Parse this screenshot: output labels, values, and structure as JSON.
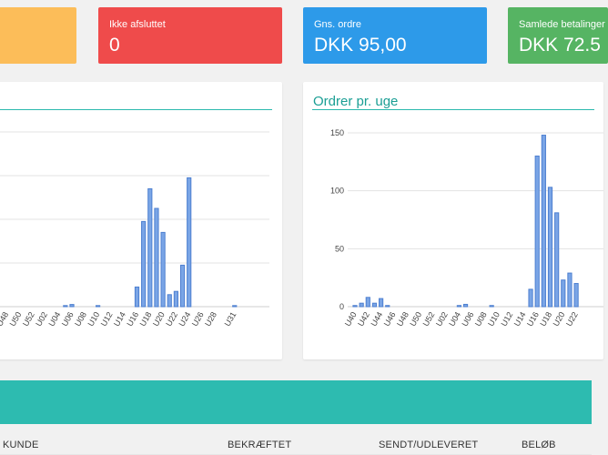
{
  "cards": [
    {
      "label": "",
      "value": "",
      "color": "#fcbd59"
    },
    {
      "label": "Ikke afsluttet",
      "value": "0",
      "color": "#ef4b4b"
    },
    {
      "label": "Gns. ordre",
      "value": "DKK 95,00",
      "color": "#2d9ae9"
    },
    {
      "label": "Samlede betalinger",
      "value": "DKK 72.5",
      "color": "#56b463"
    }
  ],
  "right_panel": {
    "title": "Ordrer pr. uge"
  },
  "table": {
    "columns": [
      "KUNDE",
      "BEKRÆFTET",
      "SENDT/UDLEVERET",
      "BELØB"
    ]
  },
  "chart_data": [
    {
      "type": "bar",
      "title": "",
      "bar_color": "#4d7fd0",
      "categories": [
        "U48",
        "U49",
        "U50",
        "U51",
        "U52",
        "U01",
        "U02",
        "U03",
        "U04",
        "U05",
        "U06",
        "U07",
        "U08",
        "U09",
        "U10",
        "U11",
        "U12",
        "U13",
        "U14",
        "U15",
        "U16",
        "U17",
        "U18",
        "U19",
        "U20",
        "U21",
        "U22",
        "U23",
        "U24",
        "U25",
        "U26",
        "U27",
        "U28",
        "U29",
        "U30",
        "U31"
      ],
      "tick_labels": [
        "U48",
        "U50",
        "U52",
        "U02",
        "U04",
        "U06",
        "U08",
        "U10",
        "U12",
        "U14",
        "U16",
        "U18",
        "U20",
        "U22",
        "U24",
        "U26",
        "U28",
        "U31"
      ],
      "values": [
        0,
        0,
        0,
        0,
        0,
        0,
        0,
        0,
        0,
        0.5,
        1,
        0,
        0,
        0,
        0.5,
        0,
        0,
        0,
        0,
        0,
        9,
        39,
        54,
        45,
        34,
        5.5,
        7,
        19,
        59,
        0,
        0,
        0,
        0,
        0,
        0,
        0.5
      ],
      "ylim": [
        0,
        80
      ],
      "grid": true
    },
    {
      "type": "bar",
      "title": "Ordrer pr. uge",
      "bar_color": "#4d7fd0",
      "categories": [
        "U40",
        "U41",
        "U42",
        "U43",
        "U44",
        "U45",
        "U46",
        "U47",
        "U48",
        "U49",
        "U50",
        "U51",
        "U52",
        "U01",
        "U02",
        "U03",
        "U04",
        "U05",
        "U06",
        "U07",
        "U08",
        "U09",
        "U10",
        "U11",
        "U12",
        "U13",
        "U14",
        "U15",
        "U16",
        "U17",
        "U18",
        "U19",
        "U20",
        "U21",
        "U22"
      ],
      "tick_labels": [
        "U40",
        "U42",
        "U44",
        "U46",
        "U48",
        "U50",
        "U52",
        "U02",
        "U04",
        "U06",
        "U08",
        "U10",
        "U12",
        "U14",
        "U16",
        "U18",
        "U20",
        "U22"
      ],
      "values": [
        1,
        3,
        8,
        3,
        7,
        1,
        0,
        0,
        0,
        0,
        0,
        0,
        0,
        0,
        0,
        0,
        1,
        2,
        0,
        0,
        0,
        1,
        0,
        0,
        0,
        0,
        0,
        15,
        130,
        148,
        103,
        81,
        23,
        29,
        20
      ],
      "yticks": [
        0,
        50,
        100,
        150
      ],
      "ylim": [
        0,
        150
      ],
      "grid": true
    }
  ]
}
